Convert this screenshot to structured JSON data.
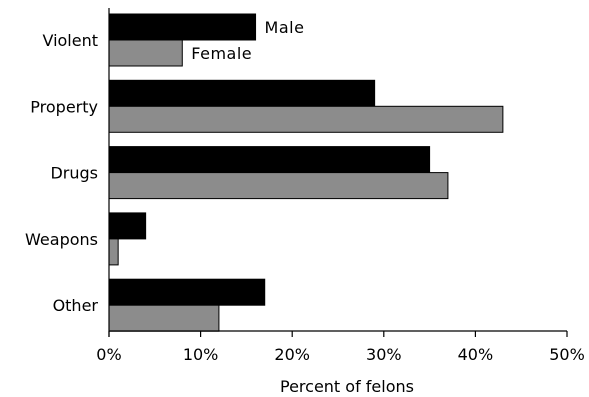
{
  "chart_data": {
    "type": "bar",
    "orientation": "horizontal",
    "categories": [
      "Violent",
      "Property",
      "Drugs",
      "Weapons",
      "Other"
    ],
    "series": [
      {
        "name": "Male",
        "color": "#000000",
        "values": [
          16,
          29,
          35,
          4,
          17
        ]
      },
      {
        "name": "Female",
        "color": "#8c8c8c",
        "values": [
          8,
          43,
          37,
          1,
          12
        ]
      }
    ],
    "xlabel": "Percent of felons",
    "ylabel": "",
    "xlim": [
      0,
      50
    ],
    "xticks": [
      0,
      10,
      20,
      30,
      40,
      50
    ],
    "xtick_labels": [
      "0%",
      "10%",
      "20%",
      "30%",
      "40%",
      "50%"
    ],
    "grid": false,
    "legend": "inline labels beside the Violent bars"
  }
}
